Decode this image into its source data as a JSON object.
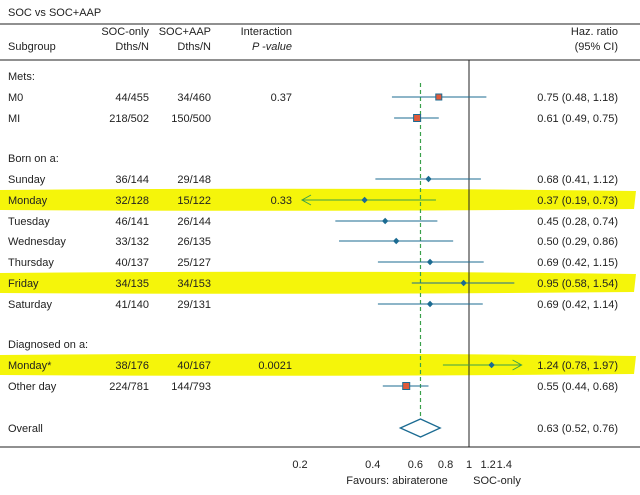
{
  "chart_data": {
    "type": "forest",
    "title": "SOC vs SOC+AAP",
    "columns": {
      "subgroup": "Subgroup",
      "soc_only": [
        "SOC-only",
        "Dths/N"
      ],
      "soc_aap": [
        "SOC+AAP",
        "Dths/N"
      ],
      "interaction": [
        "Interaction",
        "P -value"
      ],
      "hr": [
        "Haz. ratio",
        "(95% CI)"
      ]
    },
    "x_scale": "log",
    "x_ticks": [
      "0.2",
      "0.4",
      "0.6",
      "0.8",
      "1",
      "1.2",
      "1.4"
    ],
    "x_tick_values": [
      0.2,
      0.4,
      0.6,
      0.8,
      1,
      1.2,
      1.4
    ],
    "xlim": [
      0.2,
      1.65
    ],
    "reference_line": 1,
    "overall_line": 0.63,
    "favours_left": "Favours: abiraterone",
    "favours_right": "SOC-only",
    "highlight_color": "#f5f50a",
    "marker_color": "#1b6b92",
    "square_fill": "#e05a3a",
    "dashed_line_color": "#3aa04a",
    "rows": [
      {
        "kind": "header",
        "label": "Mets:"
      },
      {
        "kind": "data",
        "label": "M0",
        "soc": "44/455",
        "aap": "34/460",
        "p": "0.37",
        "hr": 0.75,
        "lo": 0.48,
        "hi": 1.18,
        "ci_text": "0.75 (0.48, 1.18)",
        "marker": "square",
        "size": 6,
        "highlight": false
      },
      {
        "kind": "data",
        "label": "MI",
        "soc": "218/502",
        "aap": "150/500",
        "p": "",
        "hr": 0.61,
        "lo": 0.49,
        "hi": 0.75,
        "ci_text": "0.61 (0.49, 0.75)",
        "marker": "square",
        "size": 7,
        "highlight": false
      },
      {
        "kind": "spacer"
      },
      {
        "kind": "header",
        "label": "Born on a:"
      },
      {
        "kind": "data",
        "label": "Sunday",
        "soc": "36/144",
        "aap": "29/148",
        "p": "",
        "hr": 0.68,
        "lo": 0.41,
        "hi": 1.12,
        "ci_text": "0.68 (0.41, 1.12)",
        "marker": "diamond",
        "highlight": false
      },
      {
        "kind": "data",
        "label": "Monday",
        "soc": "32/128",
        "aap": "15/122",
        "p": "0.33",
        "hr": 0.37,
        "lo": 0.19,
        "hi": 0.73,
        "ci_text": "0.37 (0.19, 0.73)",
        "marker": "diamond",
        "highlight": true,
        "arrow": "left"
      },
      {
        "kind": "data",
        "label": "Tuesday",
        "soc": "46/141",
        "aap": "26/144",
        "p": "",
        "hr": 0.45,
        "lo": 0.28,
        "hi": 0.74,
        "ci_text": "0.45 (0.28, 0.74)",
        "marker": "diamond",
        "highlight": false
      },
      {
        "kind": "data",
        "label": "Wednesday",
        "soc": "33/132",
        "aap": "26/135",
        "p": "",
        "hr": 0.5,
        "lo": 0.29,
        "hi": 0.86,
        "ci_text": "0.50 (0.29, 0.86)",
        "marker": "diamond",
        "highlight": false
      },
      {
        "kind": "data",
        "label": "Thursday",
        "soc": "40/137",
        "aap": "25/127",
        "p": "",
        "hr": 0.69,
        "lo": 0.42,
        "hi": 1.15,
        "ci_text": "0.69 (0.42, 1.15)",
        "marker": "diamond",
        "highlight": false
      },
      {
        "kind": "data",
        "label": "Friday",
        "soc": "34/135",
        "aap": "34/153",
        "p": "",
        "hr": 0.95,
        "lo": 0.58,
        "hi": 1.54,
        "ci_text": "0.95 (0.58, 1.54)",
        "marker": "diamond",
        "highlight": true
      },
      {
        "kind": "data",
        "label": "Saturday",
        "soc": "41/140",
        "aap": "29/131",
        "p": "",
        "hr": 0.69,
        "lo": 0.42,
        "hi": 1.14,
        "ci_text": "0.69 (0.42, 1.14)",
        "marker": "diamond",
        "highlight": false
      },
      {
        "kind": "spacer"
      },
      {
        "kind": "header",
        "label": "Diagnosed on a:"
      },
      {
        "kind": "data",
        "label": "Monday*",
        "soc": "38/176",
        "aap": "40/167",
        "p": "0.0021",
        "hr": 1.24,
        "lo": 0.78,
        "hi": 1.97,
        "ci_text": "1.24 (0.78, 1.97)",
        "marker": "diamond",
        "highlight": true,
        "arrow": "right"
      },
      {
        "kind": "data",
        "label": "Other day",
        "soc": "224/781",
        "aap": "144/793",
        "p": "",
        "hr": 0.55,
        "lo": 0.44,
        "hi": 0.68,
        "ci_text": "0.55 (0.44, 0.68)",
        "marker": "square",
        "size": 7,
        "highlight": false
      },
      {
        "kind": "spacer"
      },
      {
        "kind": "overall",
        "label": "Overall",
        "hr": 0.63,
        "lo": 0.52,
        "hi": 0.76,
        "ci_text": "0.63 (0.52, 0.76)",
        "highlight": false
      }
    ]
  }
}
